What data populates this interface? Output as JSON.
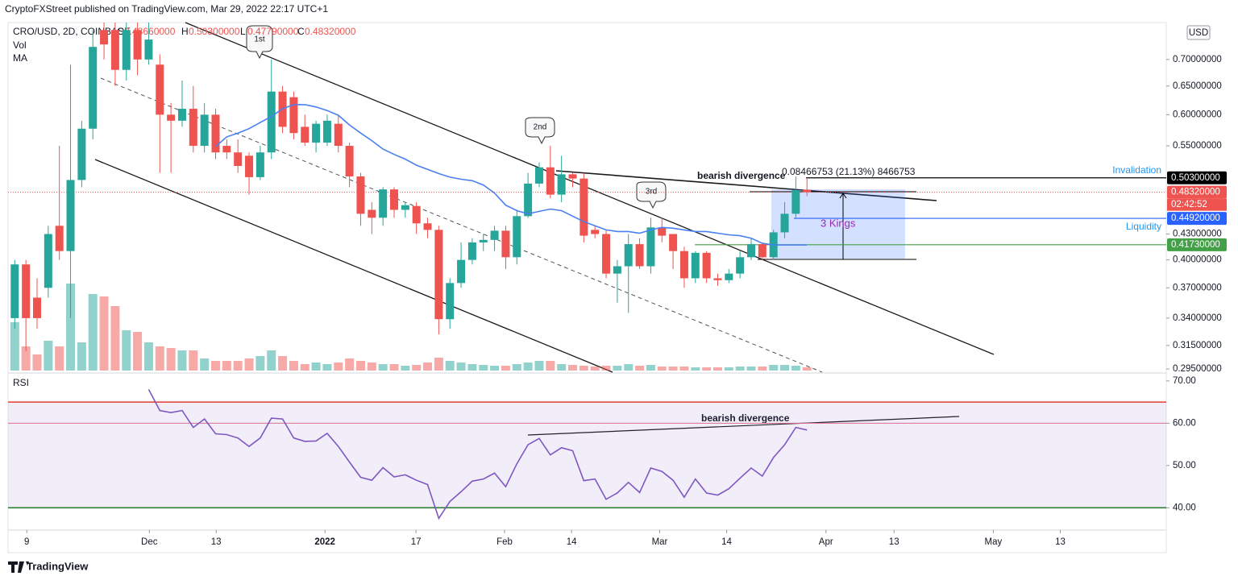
{
  "chart_data": {
    "type": "candlestick",
    "header": "CryptoFXStreet published on TradingView.com, Mar 29, 2022 22:17 UTC+1",
    "symbol": "CRO/USD, 2D, COINBASE",
    "ohlc_legend": [
      {
        "key": "O",
        "value": 0.4866,
        "label": "0.48660000"
      },
      {
        "key": "H",
        "value": 0.503,
        "label": "0.50300000"
      },
      {
        "key": "L",
        "value": 0.4779,
        "label": "0.47790000"
      },
      {
        "key": "C",
        "value": 0.4832,
        "label": "0.48320000"
      }
    ],
    "indicators": [
      "Vol",
      "MA"
    ],
    "currency": "USD",
    "log_scale": true,
    "up_color": "#26a69a",
    "down_color": "#ef5350",
    "x": [
      0,
      1,
      2,
      3,
      4,
      5,
      6,
      7,
      8,
      9,
      10,
      11,
      12,
      13,
      14,
      15,
      16,
      17,
      18,
      19,
      20,
      21,
      22,
      23,
      24,
      25,
      26,
      27,
      28,
      29,
      30,
      31,
      32,
      33,
      34,
      35,
      36,
      37,
      38,
      39,
      40,
      41,
      42,
      43,
      44,
      45,
      46,
      47,
      48,
      49,
      50,
      51,
      52,
      53,
      54,
      55,
      56,
      57,
      58,
      59,
      60,
      61,
      62,
      63,
      64,
      65,
      66,
      67,
      68,
      69,
      70,
      71
    ],
    "open": [
      0.34,
      0.395,
      0.36,
      0.37,
      0.44,
      0.41,
      0.5,
      0.577,
      0.76,
      0.76,
      0.68,
      0.76,
      0.7,
      0.69,
      0.6,
      0.59,
      0.61,
      0.55,
      0.6,
      0.55,
      0.54,
      0.535,
      0.504,
      0.54,
      0.64,
      0.63,
      0.58,
      0.555,
      0.555,
      0.585,
      0.55,
      0.505,
      0.46,
      0.45,
      0.487,
      0.46,
      0.465,
      0.443,
      0.435,
      0.339,
      0.375,
      0.4,
      0.42,
      0.423,
      0.434,
      0.403,
      0.452,
      0.495,
      0.518,
      0.48,
      0.508,
      0.502,
      0.435,
      0.43,
      0.385,
      0.393,
      0.418,
      0.393,
      0.438,
      0.43,
      0.41,
      0.38,
      0.408,
      0.38,
      0.378,
      0.385,
      0.403,
      0.418,
      0.403,
      0.432,
      0.455,
      0.4866
    ],
    "high": [
      0.4,
      0.4,
      0.38,
      0.44,
      0.55,
      0.69,
      0.59,
      0.76,
      0.78,
      0.78,
      0.78,
      0.78,
      0.78,
      0.71,
      0.62,
      0.66,
      0.65,
      0.62,
      0.61,
      0.56,
      0.56,
      0.54,
      0.55,
      0.7,
      0.65,
      0.64,
      0.6,
      0.59,
      0.6,
      0.6,
      0.555,
      0.51,
      0.47,
      0.49,
      0.49,
      0.47,
      0.47,
      0.45,
      0.44,
      0.38,
      0.42,
      0.425,
      0.43,
      0.44,
      0.44,
      0.46,
      0.51,
      0.525,
      0.55,
      0.535,
      0.51,
      0.51,
      0.44,
      0.435,
      0.4,
      0.43,
      0.425,
      0.45,
      0.45,
      0.43,
      0.415,
      0.41,
      0.41,
      0.385,
      0.39,
      0.41,
      0.425,
      0.42,
      0.435,
      0.47,
      0.505,
      0.503
    ],
    "low": [
      0.33,
      0.31,
      0.33,
      0.36,
      0.4,
      0.34,
      0.49,
      0.56,
      0.7,
      0.65,
      0.66,
      0.67,
      0.69,
      0.51,
      0.51,
      0.58,
      0.54,
      0.54,
      0.53,
      0.53,
      0.51,
      0.48,
      0.5,
      0.53,
      0.57,
      0.56,
      0.55,
      0.54,
      0.55,
      0.54,
      0.49,
      0.44,
      0.43,
      0.44,
      0.45,
      0.45,
      0.43,
      0.425,
      0.325,
      0.33,
      0.37,
      0.395,
      0.41,
      0.41,
      0.39,
      0.395,
      0.45,
      0.49,
      0.475,
      0.47,
      0.49,
      0.42,
      0.425,
      0.38,
      0.355,
      0.345,
      0.39,
      0.385,
      0.42,
      0.39,
      0.37,
      0.375,
      0.375,
      0.372,
      0.375,
      0.38,
      0.4,
      0.4,
      0.4,
      0.425,
      0.45,
      0.4779
    ],
    "close": [
      0.395,
      0.34,
      0.34,
      0.43,
      0.41,
      0.5,
      0.577,
      0.725,
      0.73,
      0.68,
      0.76,
      0.7,
      0.74,
      0.6,
      0.59,
      0.61,
      0.55,
      0.6,
      0.54,
      0.54,
      0.52,
      0.504,
      0.54,
      0.64,
      0.58,
      0.57,
      0.555,
      0.585,
      0.59,
      0.55,
      0.505,
      0.455,
      0.45,
      0.487,
      0.46,
      0.466,
      0.443,
      0.435,
      0.339,
      0.375,
      0.4,
      0.42,
      0.423,
      0.434,
      0.403,
      0.452,
      0.495,
      0.518,
      0.48,
      0.508,
      0.502,
      0.428,
      0.43,
      0.385,
      0.393,
      0.418,
      0.393,
      0.438,
      0.428,
      0.41,
      0.38,
      0.408,
      0.38,
      0.378,
      0.385,
      0.403,
      0.418,
      0.403,
      0.432,
      0.455,
      0.486,
      0.4832
    ],
    "volume": [
      60,
      30,
      20,
      37,
      30,
      108,
      35,
      95,
      92,
      80,
      50,
      48,
      35,
      30,
      28,
      25,
      25,
      15,
      12,
      12,
      12,
      15,
      18,
      25,
      18,
      12,
      8,
      10,
      8,
      10,
      15,
      12,
      10,
      8,
      8,
      6,
      7,
      10,
      16,
      12,
      10,
      8,
      7,
      6,
      6,
      8,
      10,
      12,
      12,
      8,
      7,
      6,
      5,
      6,
      6,
      8,
      6,
      7,
      5,
      5,
      5,
      4,
      4,
      4,
      4,
      5,
      5,
      5,
      7,
      7,
      6,
      4
    ],
    "ma": {
      "color": "#4a7ff0",
      "values": [
        null,
        null,
        null,
        null,
        null,
        null,
        null,
        null,
        null,
        null,
        null,
        null,
        null,
        null,
        null,
        null,
        null,
        null,
        0.549,
        0.564,
        0.57,
        0.577,
        0.587,
        0.597,
        0.61,
        0.617,
        0.617,
        0.613,
        0.607,
        0.599,
        0.583,
        0.57,
        0.558,
        0.545,
        0.537,
        0.53,
        0.521,
        0.515,
        0.509,
        0.504,
        0.501,
        0.499,
        0.493,
        0.482,
        0.466,
        0.459,
        0.455,
        0.458,
        0.461,
        0.459,
        0.452,
        0.445,
        0.44,
        0.435,
        0.433,
        0.433,
        0.431,
        0.435,
        0.438,
        0.437,
        0.435,
        0.433,
        0.433,
        0.431,
        0.429,
        0.428,
        0.425,
        0.419,
        0.417,
        0.417,
        0.417,
        0.417
      ]
    },
    "xlim": [
      -0.6,
      103.2
    ],
    "xticks": [
      {
        "value": 1.08,
        "label": "9"
      },
      {
        "value": 12.06,
        "label": "Dec"
      },
      {
        "value": 18.05,
        "label": "13"
      },
      {
        "value": 27.8,
        "label": "2022"
      },
      {
        "value": 35.96,
        "label": "17"
      },
      {
        "value": 43.9,
        "label": "Feb"
      },
      {
        "value": 49.9,
        "label": "14"
      },
      {
        "value": 57.8,
        "label": "Mar"
      },
      {
        "value": 63.8,
        "label": "14"
      },
      {
        "value": 72.7,
        "label": "Apr"
      },
      {
        "value": 78.8,
        "label": "13"
      },
      {
        "value": 87.7,
        "label": "May"
      },
      {
        "value": 93.7,
        "label": "13"
      }
    ],
    "ylim": [
      0.2937,
      0.776
    ],
    "yticks": [
      {
        "value": 0.7,
        "label": "0.70000000"
      },
      {
        "value": 0.65,
        "label": "0.65000000"
      },
      {
        "value": 0.6,
        "label": "0.60000000"
      },
      {
        "value": 0.55,
        "label": "0.55000000"
      },
      {
        "value": 0.43,
        "label": "0.43000000"
      },
      {
        "value": 0.4,
        "label": "0.40000000"
      },
      {
        "value": 0.37,
        "label": "0.37000000"
      },
      {
        "value": 0.34,
        "label": "0.34000000"
      },
      {
        "value": 0.315,
        "label": "0.31500000"
      },
      {
        "value": 0.295,
        "label": "0.29500000"
      }
    ],
    "price_labels": [
      {
        "value": 0.503,
        "label": "0.50300000",
        "color": "#000000"
      },
      {
        "value": 0.4832,
        "label": "0.48320000",
        "color": "#ef5350"
      },
      {
        "value": 0.4492,
        "label": "0.44920000",
        "color": "#2962ff"
      },
      {
        "value": 0.4173,
        "label": "0.41730000",
        "color": "#43a047"
      }
    ],
    "countdown": "02:42:52",
    "annotations": {
      "first": "1st",
      "second": "2nd",
      "third": "3rd",
      "divergence_price": "bearish divergence",
      "divergence_rsi": "bearish divergence",
      "kings": "3 Kings",
      "invalidation": "Invalidation",
      "liquidity": "Liquidity",
      "measure": "0.08466753 (21.13%) 8466753"
    },
    "rsi": {
      "label": "RSI",
      "color": "#7e57c2",
      "values": [
        null,
        null,
        null,
        null,
        null,
        null,
        null,
        null,
        null,
        null,
        null,
        null,
        68,
        63,
        62.5,
        63,
        59,
        61,
        57.5,
        57.3,
        56.5,
        54.5,
        56.5,
        61.2,
        61,
        56.5,
        55.7,
        55.8,
        57.6,
        54.5,
        50.8,
        47.2,
        46.5,
        49.5,
        47.3,
        47.8,
        46.5,
        45.5,
        37.5,
        41.5,
        43.8,
        46.3,
        46.8,
        48.2,
        45.0,
        50.4,
        54.9,
        56.4,
        52.5,
        54.2,
        53.5,
        46.4,
        46.8,
        42.0,
        43.5,
        46.0,
        43.6,
        49.4,
        48.6,
        46.5,
        42.5,
        46.8,
        43.5,
        43.0,
        44.5,
        47.0,
        49.4,
        47.5,
        51.9,
        54.9,
        59.0,
        58.4
      ],
      "ylim": [
        35.3,
        71.5
      ],
      "yticks": [
        {
          "value": 70,
          "label": "70.00"
        },
        {
          "value": 60,
          "label": "60.00"
        },
        {
          "value": 50,
          "label": "50.00"
        },
        {
          "value": 40,
          "label": "40.00"
        }
      ],
      "levels": [
        {
          "value": 65,
          "color": "#e53935"
        },
        {
          "value": 60,
          "color": "#d6708a"
        },
        {
          "value": 40,
          "color": "#2e7d32"
        }
      ]
    },
    "footer": "TradingView"
  }
}
